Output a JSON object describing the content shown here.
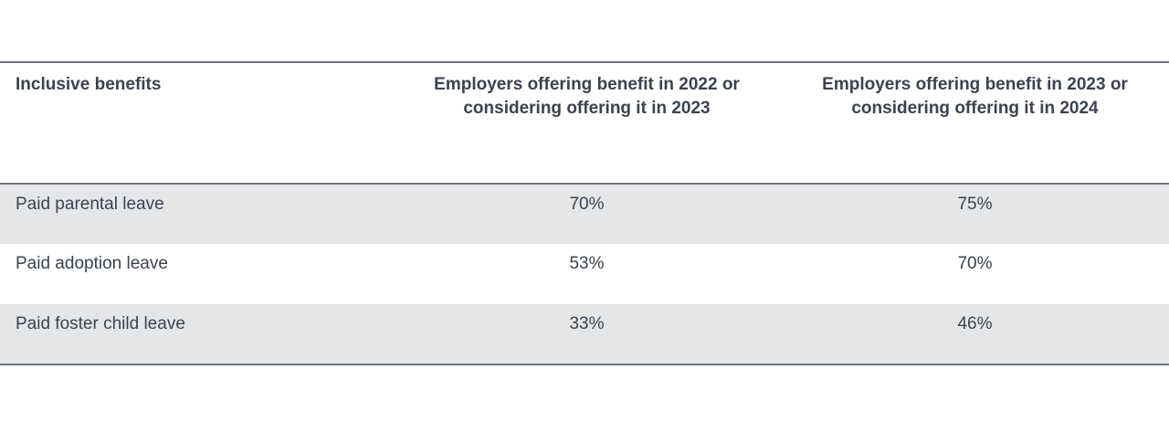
{
  "chart_data": {
    "type": "table",
    "columns": [
      "Inclusive benefits",
      "Employers offering benefit in 2022 or considering offering it in 2023",
      "Employers offering benefit in 2023 or considering offering it in 2024"
    ],
    "rows": [
      {
        "benefit": "Paid parental leave",
        "y2023": "70%",
        "y2024": "75%"
      },
      {
        "benefit": "Paid adoption leave",
        "y2023": "53%",
        "y2024": "70%"
      },
      {
        "benefit": "Paid foster child leave",
        "y2023": "33%",
        "y2024": "46%"
      }
    ],
    "series": [
      {
        "name": "Employers offering benefit in 2022 or considering offering it in 2023",
        "values": [
          70,
          53,
          33
        ]
      },
      {
        "name": "Employers offering benefit in 2023 or considering offering it in 2024",
        "values": [
          75,
          70,
          46
        ]
      }
    ],
    "categories": [
      "Paid parental leave",
      "Paid adoption leave",
      "Paid foster child leave"
    ]
  }
}
